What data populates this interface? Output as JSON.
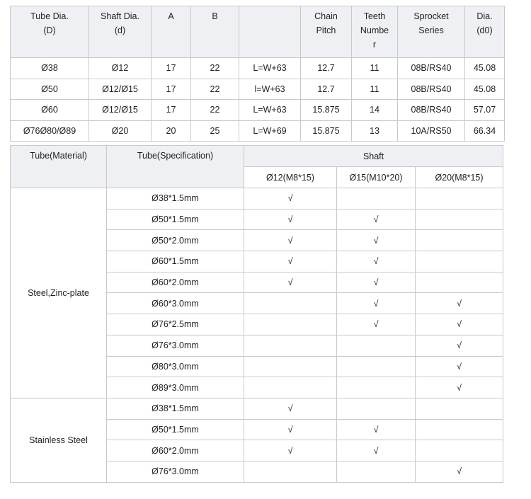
{
  "table1": {
    "headers": [
      "Tube Dia.\n(D)",
      "Shaft Dia.\n(d)",
      "A",
      "B",
      "",
      "Chain\nPitch",
      "Teeth\nNumbe\nr",
      "Sprocket\nSeries",
      "Dia.\n(d0)"
    ],
    "rows": [
      [
        "Ø38",
        "Ø12",
        "17",
        "22",
        "L=W+63",
        "12.7",
        "11",
        "08B/RS40",
        "45.08"
      ],
      [
        "Ø50",
        "Ø12/Ø15",
        "17",
        "22",
        "l=W+63",
        "12.7",
        "11",
        "08B/RS40",
        "45.08"
      ],
      [
        "Ø60",
        "Ø12/Ø15",
        "17",
        "22",
        "L=W+63",
        "15.875",
        "14",
        "08B/RS40",
        "57.07"
      ],
      [
        "Ø76Ø80/Ø89",
        "Ø20",
        "20",
        "25",
        "L=W+69",
        "15.875",
        "13",
        "10A/RS50",
        "66.34"
      ]
    ]
  },
  "table2": {
    "header_material": "Tube(Material)",
    "header_spec": "Tube(Specification)",
    "header_shaft": "Shaft",
    "shaft_columns": [
      "Ø12(M8*15)",
      "Ø15(M10*20)",
      "Ø20(M8*15)"
    ],
    "groups": [
      {
        "material": "Steel,Zinc-plate",
        "rows": [
          {
            "spec": "Ø38*1.5mm",
            "marks": [
              "√",
              "",
              ""
            ]
          },
          {
            "spec": "Ø50*1.5mm",
            "marks": [
              "√",
              "√",
              ""
            ]
          },
          {
            "spec": "Ø50*2.0mm",
            "marks": [
              "√",
              "√",
              ""
            ]
          },
          {
            "spec": "Ø60*1.5mm",
            "marks": [
              "√",
              "√",
              ""
            ]
          },
          {
            "spec": "Ø60*2.0mm",
            "marks": [
              "√",
              "√",
              ""
            ]
          },
          {
            "spec": "Ø60*3.0mm",
            "marks": [
              "",
              "√",
              "√"
            ]
          },
          {
            "spec": "Ø76*2.5mm",
            "marks": [
              "",
              "√",
              "√"
            ]
          },
          {
            "spec": "Ø76*3.0mm",
            "marks": [
              "",
              "",
              "√"
            ]
          },
          {
            "spec": "Ø80*3.0mm",
            "marks": [
              "",
              "",
              "√"
            ]
          },
          {
            "spec": "Ø89*3.0mm",
            "marks": [
              "",
              "",
              "√"
            ]
          }
        ]
      },
      {
        "material": "Stainless Steel",
        "rows": [
          {
            "spec": "Ø38*1.5mm",
            "marks": [
              "√",
              "",
              ""
            ]
          },
          {
            "spec": "Ø50*1.5mm",
            "marks": [
              "√",
              "√",
              ""
            ]
          },
          {
            "spec": "Ø60*2.0mm",
            "marks": [
              "√",
              "√",
              ""
            ]
          },
          {
            "spec": "Ø76*3.0mm",
            "marks": [
              "",
              "",
              "√"
            ]
          }
        ]
      }
    ]
  }
}
